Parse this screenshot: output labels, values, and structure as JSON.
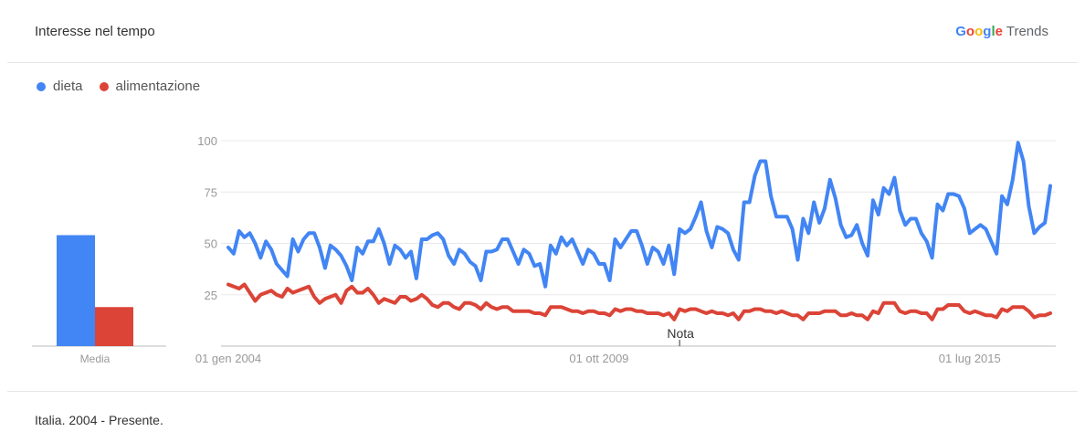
{
  "header": {
    "title": "Interesse nel tempo",
    "brand": {
      "letters": [
        {
          "ch": "G",
          "color": "#4285F4"
        },
        {
          "ch": "o",
          "color": "#EA4335"
        },
        {
          "ch": "o",
          "color": "#FBBC05"
        },
        {
          "ch": "g",
          "color": "#4285F4"
        },
        {
          "ch": "l",
          "color": "#34A853"
        },
        {
          "ch": "e",
          "color": "#EA4335"
        }
      ],
      "suffix": "Trends"
    }
  },
  "footer": {
    "text": "Italia. 2004 - Presente."
  },
  "chart_data": {
    "type": "line",
    "series": [
      {
        "name": "dieta",
        "color": "#4285F4",
        "average": 54,
        "values": [
          48,
          45,
          56,
          53,
          55,
          50,
          43,
          51,
          47,
          40,
          37,
          34,
          52,
          46,
          52,
          55,
          55,
          48,
          38,
          49,
          47,
          44,
          39,
          32,
          48,
          45,
          51,
          51,
          57,
          50,
          40,
          49,
          47,
          43,
          46,
          33,
          52,
          52,
          54,
          55,
          52,
          44,
          40,
          47,
          45,
          41,
          39,
          32,
          46,
          46,
          47,
          52,
          52,
          46,
          40,
          47,
          45,
          39,
          40,
          29,
          49,
          45,
          53,
          49,
          52,
          46,
          40,
          47,
          45,
          40,
          40,
          32,
          52,
          48,
          52,
          56,
          56,
          49,
          40,
          48,
          46,
          40,
          49,
          35,
          57,
          55,
          57,
          63,
          70,
          56,
          48,
          58,
          57,
          55,
          47,
          42,
          70,
          70,
          83,
          90,
          90,
          73,
          63,
          63,
          63,
          57,
          42,
          62,
          55,
          70,
          60,
          67,
          81,
          72,
          59,
          53,
          54,
          59,
          50,
          44,
          71,
          64,
          77,
          74,
          82,
          66,
          59,
          62,
          62,
          55,
          51,
          43,
          69,
          66,
          74,
          74,
          73,
          67,
          55,
          57,
          59,
          57,
          51,
          45,
          73,
          69,
          81,
          99,
          90,
          68,
          55,
          58,
          60,
          78
        ],
        "line_width": 4
      },
      {
        "name": "alimentazione",
        "color": "#DB4437",
        "average": 19,
        "values": [
          30,
          29,
          28,
          30,
          26,
          22,
          25,
          26,
          27,
          25,
          24,
          28,
          26,
          27,
          28,
          29,
          24,
          21,
          23,
          24,
          25,
          21,
          27,
          29,
          26,
          26,
          28,
          25,
          21,
          23,
          22,
          21,
          24,
          24,
          22,
          23,
          25,
          23,
          20,
          19,
          21,
          21,
          19,
          18,
          21,
          21,
          20,
          18,
          21,
          19,
          18,
          19,
          19,
          17,
          17,
          17,
          17,
          16,
          16,
          15,
          19,
          19,
          19,
          18,
          17,
          17,
          16,
          17,
          17,
          16,
          16,
          15,
          18,
          17,
          18,
          18,
          17,
          17,
          16,
          16,
          16,
          15,
          16,
          13,
          18,
          17,
          18,
          18,
          17,
          16,
          17,
          16,
          16,
          15,
          16,
          13,
          17,
          17,
          18,
          18,
          17,
          17,
          16,
          17,
          16,
          15,
          15,
          13,
          16,
          16,
          16,
          17,
          17,
          17,
          15,
          15,
          16,
          15,
          15,
          13,
          17,
          16,
          21,
          21,
          21,
          17,
          16,
          17,
          17,
          16,
          16,
          13,
          18,
          18,
          20,
          20,
          20,
          17,
          16,
          17,
          16,
          15,
          15,
          14,
          18,
          17,
          19,
          19,
          19,
          17,
          14,
          15,
          15,
          16
        ],
        "line_width": 4
      }
    ],
    "y_ticks": [
      25,
      50,
      75,
      100
    ],
    "ylim": [
      0,
      100
    ],
    "x_labels": [
      "01 gen 2004",
      "01 ott 2009",
      "01 lug 2015"
    ],
    "x_label_index": [
      0,
      69,
      138
    ],
    "average_label": "Media",
    "note": {
      "label": "Nota",
      "index": 84
    },
    "legend_position": "top-left",
    "grid": true
  }
}
